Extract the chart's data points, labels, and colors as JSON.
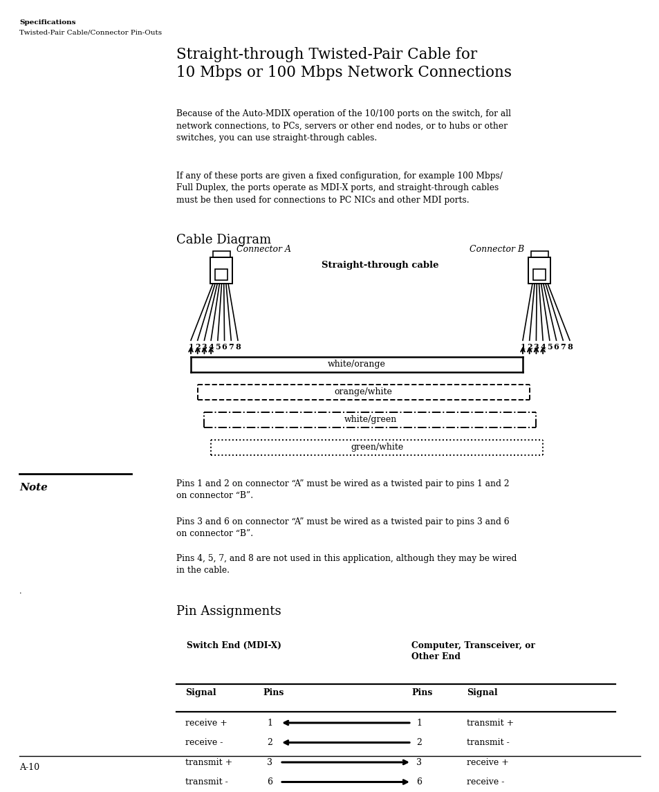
{
  "page_width": 9.54,
  "page_height": 11.45,
  "bg_color": "#ffffff",
  "header_bold": "Specifications",
  "header_normal": "Twisted-Pair Cable/Connector Pin-Outs",
  "section_title": "Straight-through Twisted-Pair Cable for\n10 Mbps or 100 Mbps Network Connections",
  "para1": "Because of the Auto-MDIX operation of the 10/100 ports on the switch, for all\nnetwork connections, to PCs, servers or other end nodes, or to hubs or other\nswitches, you can use straight-through cables.",
  "para2": "If any of these ports are given a fixed configuration, for example 100 Mbps/\nFull Duplex, the ports operate as MDI-X ports, and straight-through cables\nmust be then used for connections to PC NICs and other MDI ports.",
  "cable_diagram_title": "Cable Diagram",
  "connector_a_label": "Connector A",
  "connector_b_label": "Connector B",
  "cable_label": "Straight-through cable",
  "wire_labels": [
    "white/orange",
    "orange/white",
    "white/green",
    "green/white"
  ],
  "note_title": "Note",
  "note_text1": "Pins 1 and 2 on connector “A” must be wired as a twisted pair to pins 1 and 2\non connector “B”.",
  "note_text2": "Pins 3 and 6 on connector “A” must be wired as a twisted pair to pins 3 and 6\non connector “B”.",
  "note_text3": "Pins 4, 5, 7, and 8 are not used in this application, although they may be wired\nin the cable.",
  "pin_assign_title": "Pin Assignments",
  "switch_end_label": "Switch End (MDI-X)",
  "other_end_label": "Computer, Transceiver, or\nOther End",
  "col_signal": "Signal",
  "col_pins": "Pins",
  "col_pins2": "Pins",
  "col_signal2": "Signal",
  "rows": [
    {
      "signal_l": "receive +",
      "pin_l": "1",
      "arrow": "left",
      "pin_r": "1",
      "signal_r": "transmit +"
    },
    {
      "signal_l": "receive -",
      "pin_l": "2",
      "arrow": "left",
      "pin_r": "2",
      "signal_r": "transmit -"
    },
    {
      "signal_l": "transmit +",
      "pin_l": "3",
      "arrow": "right",
      "pin_r": "3",
      "signal_r": "receive +"
    },
    {
      "signal_l": "transmit -",
      "pin_l": "6",
      "arrow": "right",
      "pin_r": "6",
      "signal_r": "receive -"
    }
  ],
  "footer_line": "A-10"
}
